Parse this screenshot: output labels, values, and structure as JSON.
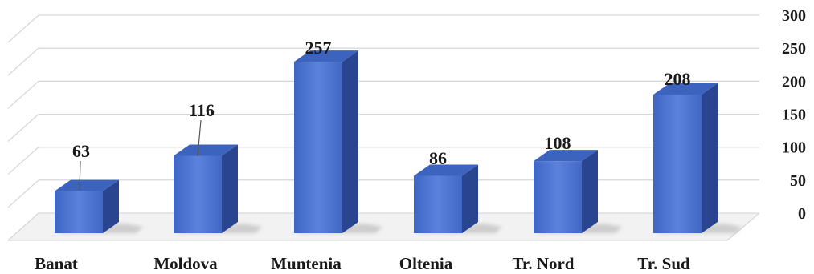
{
  "chart_data": {
    "type": "bar",
    "categories": [
      "Banat",
      "Moldova",
      "Muntenia",
      "Oltenia",
      "Tr. Nord",
      "Tr. Sud"
    ],
    "values": [
      63,
      116,
      257,
      86,
      108,
      208
    ],
    "title": "",
    "xlabel": "",
    "ylabel": "",
    "ylim": [
      0,
      300
    ],
    "yticks": [
      "0",
      "50",
      "100",
      "150",
      "200",
      "250",
      "300"
    ],
    "grid": true,
    "legend": "none",
    "colors": {
      "bar_front": "#4a73cf",
      "bar_side": "#2a4590",
      "bar_top": "#3c63bd",
      "grid": "#d9d9d9",
      "floor": "#e6e6e6"
    }
  }
}
